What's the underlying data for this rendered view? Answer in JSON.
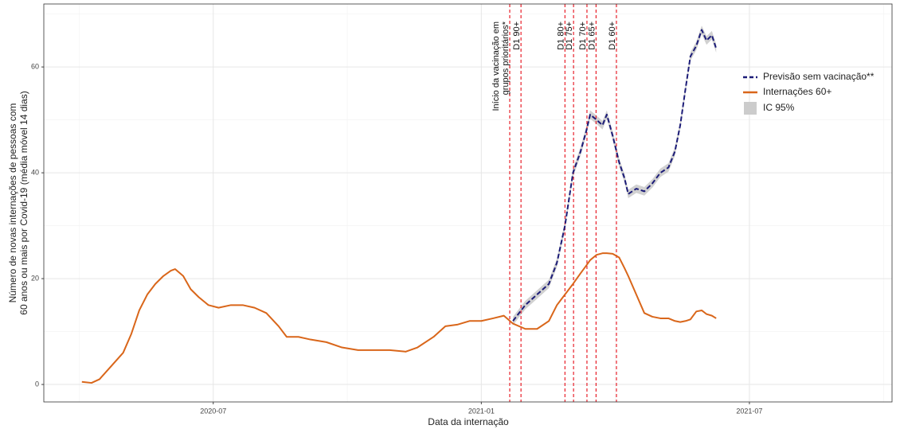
{
  "chart_data": {
    "type": "line",
    "x_label": "Data da internação",
    "y_label": [
      "Número de novas internações de pessoas com",
      "60 anos ou mais por Covid-19 (média móvel 14 dias)"
    ],
    "x": [
      2020.255,
      2020.273,
      2020.288,
      2020.31,
      2020.332,
      2020.347,
      2020.362,
      2020.377,
      2020.392,
      2020.407,
      2020.421,
      2020.429,
      2020.444,
      2020.458,
      2020.473,
      2020.491,
      2020.51,
      2020.533,
      2020.555,
      2020.577,
      2020.599,
      2020.622,
      2020.637,
      2020.659,
      2020.681,
      2020.711,
      2020.74,
      2020.77,
      2020.8,
      2020.829,
      2020.859,
      2020.881,
      2020.911,
      2020.933,
      2020.955,
      2020.978,
      2021.0,
      2021.022,
      2021.042,
      2021.059,
      2021.082,
      2021.104,
      2021.126,
      2021.141,
      2021.156,
      2021.171,
      2021.185,
      2021.196,
      2021.203,
      2021.215,
      2021.226,
      2021.234,
      2021.245,
      2021.257,
      2021.267,
      2021.274,
      2021.289,
      2021.304,
      2021.319,
      2021.334,
      2021.349,
      2021.361,
      2021.371,
      2021.381,
      2021.39,
      2021.401,
      2021.411,
      2021.42,
      2021.43,
      2021.438
    ],
    "series": [
      {
        "name": "Previsão sem vacinação**",
        "color": "#1c1c78",
        "dashed": true,
        "ci": 0.8,
        "ci_name": "IC 95%",
        "ci_color": "#cccccc",
        "values": [
          null,
          null,
          null,
          null,
          null,
          null,
          null,
          null,
          null,
          null,
          null,
          null,
          null,
          null,
          null,
          null,
          null,
          null,
          null,
          null,
          null,
          null,
          null,
          null,
          null,
          null,
          null,
          null,
          null,
          null,
          null,
          null,
          null,
          null,
          null,
          null,
          null,
          null,
          null,
          12,
          15,
          17,
          19,
          23,
          30,
          40,
          44,
          48,
          51,
          50,
          49,
          51,
          47,
          42,
          39,
          36,
          37,
          36.5,
          38,
          40,
          41,
          44,
          49,
          56,
          62,
          64,
          67,
          65,
          66,
          63.5
        ]
      },
      {
        "name": "Internações 60+",
        "color": "#d9661a",
        "dashed": false,
        "values": [
          0.5,
          0.3,
          1,
          3.5,
          6,
          9.5,
          14,
          17,
          19,
          20.5,
          21.5,
          21.8,
          20.5,
          18,
          16.5,
          15,
          14.5,
          15,
          15,
          14.5,
          13.5,
          11,
          9,
          9,
          8.5,
          8,
          7,
          6.5,
          6.5,
          6.5,
          6.2,
          7,
          9,
          11,
          11.3,
          12,
          12,
          12.5,
          13,
          11.5,
          10.5,
          10.5,
          12,
          15,
          17,
          19,
          21,
          22.5,
          23.5,
          24.5,
          24.8,
          24.8,
          24.7,
          24,
          22,
          20.5,
          17,
          13.5,
          12.8,
          12.5,
          12.5,
          12,
          11.8,
          12,
          12.3,
          13.8,
          14,
          13.3,
          13,
          12.5
        ]
      }
    ],
    "vlines": [
      {
        "x": 2021.053,
        "label": [
          "Início da vacinação em",
          "grupos prioritários*"
        ]
      },
      {
        "x": 2021.074,
        "label": [
          "D1 90+"
        ]
      },
      {
        "x": 2021.156,
        "label": [
          "D1 80+"
        ]
      },
      {
        "x": 2021.172,
        "label": [
          "D1 75+"
        ]
      },
      {
        "x": 2021.197,
        "label": [
          "D1 70+"
        ]
      },
      {
        "x": 2021.214,
        "label": [
          "D1 65+"
        ]
      },
      {
        "x": 2021.252,
        "label": [
          "D1 60+"
        ]
      }
    ],
    "vline_color": "#e8202a",
    "xlim": [
      2020.184,
      2021.766
    ],
    "ylim": [
      -3.3,
      71.9
    ],
    "xticks": [
      {
        "value": 2020.5,
        "label": "2020-07"
      },
      {
        "value": 2021.0,
        "label": "2021-01"
      },
      {
        "value": 2021.5,
        "label": "2021-07"
      }
    ],
    "yticks": [
      0,
      20,
      40,
      60
    ],
    "minor_xticks": [
      2020.25,
      2020.75,
      2021.25,
      2021.75
    ],
    "minor_yticks": [
      10,
      30,
      50,
      70
    ],
    "grid": true,
    "legend": "right"
  }
}
